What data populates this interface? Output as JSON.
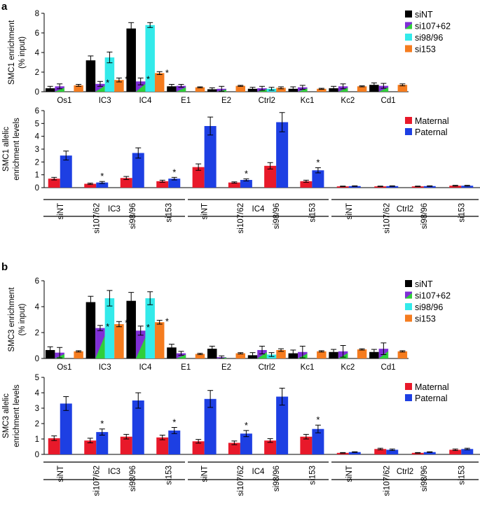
{
  "colors": {
    "siNT": "#000000",
    "si107": "#7f2fd6",
    "si107_accent": "#2fcf3a",
    "si98": "#33eaea",
    "si153": "#f57c1f",
    "maternal": "#e8192a",
    "paternal": "#1d3fe3",
    "axis": "#000000"
  },
  "panels": [
    {
      "label": "a",
      "top_title": "",
      "bottom_title": ""
    },
    {
      "label": "b",
      "top_title": "",
      "bottom_title": ""
    }
  ],
  "chart_data": [
    {
      "id": "a_top",
      "type": "bar",
      "title": "",
      "ylabel": [
        "SMC1 enrichment",
        "(% input)"
      ],
      "ylim": [
        0,
        8
      ],
      "yticks": [
        "0",
        "2",
        "4",
        "6",
        "8"
      ],
      "ytick_values": [
        0,
        2,
        4,
        6,
        8
      ],
      "categories": [
        "Os1",
        "IC3",
        "IC4",
        "E1",
        "E2",
        "Ctrl2",
        "Kc1",
        "Kc2",
        "Cd1"
      ],
      "legend": [
        "siNT",
        "si107+62",
        "si98/96",
        "si153"
      ],
      "series": [
        {
          "name": "siNT",
          "key": "siNT",
          "values": [
            0.35,
            3.2,
            6.45,
            0.55,
            0.25,
            0.3,
            0.3,
            0.35,
            0.7
          ],
          "errors": [
            0.2,
            0.45,
            0.6,
            0.2,
            0.15,
            0.15,
            0.2,
            0.2,
            0.2
          ]
        },
        {
          "name": "si107+62",
          "key": "si107",
          "values": [
            0.55,
            0.8,
            1.05,
            0.6,
            0.3,
            0.35,
            0.45,
            0.55,
            0.6
          ],
          "errors": [
            0.25,
            0.25,
            0.35,
            0.15,
            0.25,
            0.2,
            0.2,
            0.25,
            0.25
          ]
        },
        {
          "name": "si98/96",
          "key": "si98",
          "values": [
            null,
            3.5,
            6.8,
            null,
            null,
            0.3,
            null,
            null,
            null
          ],
          "errors": [
            null,
            0.55,
            0.25,
            null,
            null,
            0.15,
            null,
            null,
            null
          ]
        },
        {
          "name": "si153",
          "key": "si153",
          "values": [
            0.65,
            1.2,
            1.9,
            0.45,
            0.6,
            0.4,
            0.3,
            0.55,
            0.7
          ],
          "errors": [
            0.1,
            0.2,
            0.15,
            0.05,
            0.05,
            0.1,
            0.05,
            0.05,
            0.1
          ]
        }
      ],
      "stars": [
        {
          "category": "IC3",
          "series": "si107"
        },
        {
          "category": "IC3",
          "series": "si153"
        },
        {
          "category": "IC4",
          "series": "si107"
        },
        {
          "category": "IC4",
          "series": "si153"
        }
      ],
      "star_label": "*"
    },
    {
      "id": "a_bottom",
      "type": "bar",
      "title": "",
      "ylabel": [
        "SMC1 allelic",
        "enrichment levels"
      ],
      "ylim": [
        0,
        6
      ],
      "yticks": [
        "0",
        "1",
        "2",
        "3",
        "4",
        "5",
        "6"
      ],
      "ytick_values": [
        0,
        1,
        2,
        3,
        4,
        5,
        6
      ],
      "groups": [
        "IC3",
        "IC4",
        "Ctrl2"
      ],
      "subcategories": [
        "siNT",
        "si107/62",
        "si98/96",
        "si153"
      ],
      "legend": [
        "Maternal",
        "Paternal"
      ],
      "series": [
        {
          "name": "Maternal",
          "key": "maternal",
          "values": [
            0.7,
            0.3,
            0.75,
            0.5,
            1.6,
            0.4,
            1.7,
            0.5,
            0.1,
            0.1,
            0.1,
            0.15
          ],
          "errors": [
            0.1,
            0.05,
            0.12,
            0.08,
            0.25,
            0.05,
            0.25,
            0.08,
            0.02,
            0.02,
            0.02,
            0.03
          ]
        },
        {
          "name": "Paternal",
          "key": "paternal",
          "values": [
            2.5,
            0.4,
            2.7,
            0.7,
            4.8,
            0.6,
            5.1,
            1.35,
            0.12,
            0.12,
            0.12,
            0.15
          ],
          "errors": [
            0.35,
            0.08,
            0.4,
            0.1,
            0.7,
            0.08,
            0.75,
            0.2,
            0.02,
            0.02,
            0.02,
            0.03
          ]
        }
      ],
      "stars": [
        1,
        3,
        5,
        7
      ],
      "star_label": "*"
    },
    {
      "id": "b_top",
      "type": "bar",
      "title": "",
      "ylabel": [
        "SMC3 enrichment",
        "(% input)"
      ],
      "ylim": [
        0,
        6
      ],
      "yticks": [
        "0",
        "2",
        "4",
        "6"
      ],
      "ytick_values": [
        0,
        2,
        4,
        6
      ],
      "categories": [
        "Os1",
        "IC3",
        "IC4",
        "E1",
        "E2",
        "Ctrl2",
        "Kc1",
        "Kc2",
        "Cd1"
      ],
      "legend": [
        "siNT",
        "si107+62",
        "si98/96",
        "si153"
      ],
      "series": [
        {
          "name": "siNT",
          "key": "siNT",
          "values": [
            0.65,
            4.35,
            4.45,
            0.85,
            0.75,
            0.25,
            0.4,
            0.5,
            0.5
          ],
          "errors": [
            0.25,
            0.45,
            0.65,
            0.25,
            0.2,
            0.2,
            0.25,
            0.2,
            0.2
          ]
        },
        {
          "name": "si107+62",
          "key": "si107",
          "values": [
            0.45,
            2.35,
            2.15,
            0.4,
            0.1,
            0.65,
            0.5,
            0.55,
            0.75
          ],
          "errors": [
            0.4,
            0.2,
            0.35,
            0.15,
            0.1,
            0.3,
            0.45,
            0.45,
            0.45
          ]
        },
        {
          "name": "si98/96",
          "key": "si98",
          "values": [
            null,
            4.65,
            4.65,
            null,
            null,
            0.3,
            null,
            null,
            null
          ],
          "errors": [
            null,
            0.6,
            0.5,
            null,
            null,
            0.15,
            null,
            null,
            null
          ]
        },
        {
          "name": "si153",
          "key": "si153",
          "values": [
            0.55,
            2.65,
            2.8,
            0.35,
            0.4,
            0.65,
            0.55,
            0.7,
            0.55
          ],
          "errors": [
            0.05,
            0.2,
            0.15,
            0.05,
            0.05,
            0.1,
            0.05,
            0.05,
            0.05
          ]
        }
      ],
      "stars": [
        {
          "category": "IC3",
          "series": "si107"
        },
        {
          "category": "IC3",
          "series": "si153"
        },
        {
          "category": "IC4",
          "series": "si107"
        },
        {
          "category": "IC4",
          "series": "si153"
        }
      ],
      "star_label": "*"
    },
    {
      "id": "b_bottom",
      "type": "bar",
      "title": "",
      "ylabel": [
        "SMC3 allelic",
        "enrichment levels"
      ],
      "ylim": [
        0,
        5
      ],
      "yticks": [
        "0",
        "1",
        "2",
        "3",
        "4",
        "5"
      ],
      "ytick_values": [
        0,
        1,
        2,
        3,
        4,
        5
      ],
      "groups": [
        "IC3",
        "IC4",
        "Ctrl2"
      ],
      "subcategories": [
        "siNT",
        "si107/62",
        "si98/96",
        "si153"
      ],
      "legend": [
        "Maternal",
        "Paternal"
      ],
      "series": [
        {
          "name": "Maternal",
          "key": "maternal",
          "values": [
            1.05,
            0.9,
            1.15,
            1.1,
            0.85,
            0.75,
            0.9,
            1.15,
            0.1,
            0.35,
            0.1,
            0.3
          ],
          "errors": [
            0.15,
            0.15,
            0.15,
            0.15,
            0.12,
            0.12,
            0.12,
            0.15,
            0.02,
            0.05,
            0.02,
            0.05
          ]
        },
        {
          "name": "Paternal",
          "key": "paternal",
          "values": [
            3.3,
            1.45,
            3.5,
            1.55,
            3.6,
            1.35,
            3.75,
            1.65,
            0.15,
            0.3,
            0.15,
            0.35
          ],
          "errors": [
            0.45,
            0.2,
            0.5,
            0.2,
            0.55,
            0.2,
            0.55,
            0.25,
            0.02,
            0.05,
            0.02,
            0.05
          ]
        }
      ],
      "stars": [
        1,
        3,
        5,
        7
      ],
      "star_label": "*"
    }
  ]
}
